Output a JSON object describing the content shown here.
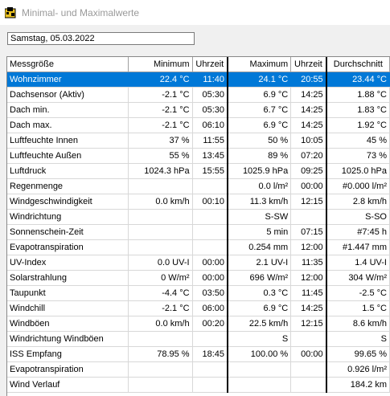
{
  "window": {
    "title": "Minimal- und Maximalwerte"
  },
  "date_field": {
    "value": "Samstag, 05.03.2022"
  },
  "table": {
    "headers": {
      "name": "Messgröße",
      "min": "Minimum",
      "min_time": "Uhrzeit",
      "max": "Maximum",
      "max_time": "Uhrzeit",
      "avg": "Durchschnitt"
    },
    "rows": [
      {
        "name": "Wohnzimmer",
        "min": "22.4 °C",
        "min_time": "11:40",
        "max": "24.1 °C",
        "max_time": "20:55",
        "avg": "23.44 °C"
      },
      {
        "name": "Dachsensor (Aktiv)",
        "min": "-2.1 °C",
        "min_time": "05:30",
        "max": "6.9 °C",
        "max_time": "14:25",
        "avg": "1.88 °C"
      },
      {
        "name": "Dach min.",
        "min": "-2.1 °C",
        "min_time": "05:30",
        "max": "6.7 °C",
        "max_time": "14:25",
        "avg": "1.83 °C"
      },
      {
        "name": "Dach max.",
        "min": "-2.1 °C",
        "min_time": "06:10",
        "max": "6.9 °C",
        "max_time": "14:25",
        "avg": "1.92 °C"
      },
      {
        "name": "Luftfeuchte Innen",
        "min": "37 %",
        "min_time": "11:55",
        "max": "50 %",
        "max_time": "10:05",
        "avg": "45 %"
      },
      {
        "name": "Luftfeuchte Außen",
        "min": "55 %",
        "min_time": "13:45",
        "max": "89 %",
        "max_time": "07:20",
        "avg": "73 %"
      },
      {
        "name": "Luftdruck",
        "min": "1024.3 hPa",
        "min_time": "15:55",
        "max": "1025.9 hPa",
        "max_time": "09:25",
        "avg": "1025.0 hPa"
      },
      {
        "name": "Regenmenge",
        "min": "",
        "min_time": "",
        "max": "0.0 l/m²",
        "max_time": "00:00",
        "avg": "#0.000 l/m²"
      },
      {
        "name": "Windgeschwindigkeit",
        "min": "0.0 km/h",
        "min_time": "00:10",
        "max": "11.3 km/h",
        "max_time": "12:15",
        "avg": "2.8 km/h"
      },
      {
        "name": "Windrichtung",
        "min": "",
        "min_time": "",
        "max": "S-SW",
        "max_time": "",
        "avg": "S-SO"
      },
      {
        "name": "Sonnenschein-Zeit",
        "min": "",
        "min_time": "",
        "max": "5 min",
        "max_time": "07:15",
        "avg": "#7:45 h"
      },
      {
        "name": "Evapotranspiration",
        "min": "",
        "min_time": "",
        "max": "0.254 mm",
        "max_time": "12:00",
        "avg": "#1.447 mm"
      },
      {
        "name": "UV-Index",
        "min": "0.0 UV-I",
        "min_time": "00:00",
        "max": "2.1 UV-I",
        "max_time": "11:35",
        "avg": "1.4 UV-I"
      },
      {
        "name": "Solarstrahlung",
        "min": "0 W/m²",
        "min_time": "00:00",
        "max": "696 W/m²",
        "max_time": "12:00",
        "avg": "304 W/m²"
      },
      {
        "name": "Taupunkt",
        "min": "-4.4 °C",
        "min_time": "03:50",
        "max": "0.3 °C",
        "max_time": "11:45",
        "avg": "-2.5 °C"
      },
      {
        "name": "Windchill",
        "min": "-2.1 °C",
        "min_time": "06:00",
        "max": "6.9 °C",
        "max_time": "14:25",
        "avg": "1.5 °C"
      },
      {
        "name": "Windböen",
        "min": "0.0 km/h",
        "min_time": "00:20",
        "max": "22.5 km/h",
        "max_time": "12:15",
        "avg": "8.6 km/h"
      },
      {
        "name": "Windrichtung Windböen",
        "min": "",
        "min_time": "",
        "max": "S",
        "max_time": "",
        "avg": "S"
      },
      {
        "name": "ISS Empfang",
        "min": "78.95 %",
        "min_time": "18:45",
        "max": "100.00 %",
        "max_time": "00:00",
        "avg": "99.65 %"
      },
      {
        "name": "Evapotranspiration",
        "min": "",
        "min_time": "",
        "max": "",
        "max_time": "",
        "avg": "0.926 l/m²"
      },
      {
        "name": "Wind Verlauf",
        "min": "",
        "min_time": "",
        "max": "",
        "max_time": "",
        "avg": "184.2 km"
      }
    ],
    "selected_row": 0
  },
  "colors": {
    "selection": "#0078d7",
    "column_separator": "#000000"
  }
}
